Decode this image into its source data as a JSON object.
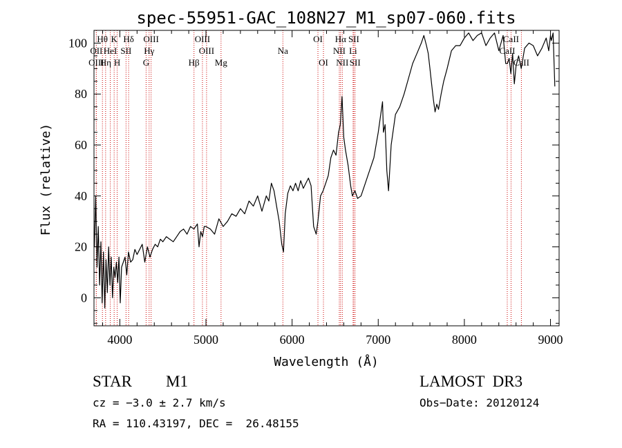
{
  "chart_data": {
    "type": "line",
    "title": "spec-55951-GAC_108N27_M1_sp07-060.fits",
    "xlabel": "Wavelength (Å)",
    "ylabel": "Flux (relative)",
    "xlim": [
      3700,
      9100
    ],
    "ylim": [
      -11,
      105
    ],
    "x_ticks": [
      4000,
      5000,
      6000,
      7000,
      8000,
      9000
    ],
    "y_ticks": [
      0,
      20,
      40,
      60,
      80,
      100
    ],
    "spectral_lines": [
      {
        "label": "Hθ",
        "wavelength": 3798,
        "row": 0
      },
      {
        "label": "K",
        "wavelength": 3934,
        "row": 0
      },
      {
        "label": "Hδ",
        "wavelength": 4102,
        "row": 0
      },
      {
        "label": "OIII",
        "wavelength": 4363,
        "row": 0
      },
      {
        "label": "OIII",
        "wavelength": 4959,
        "row": 0
      },
      {
        "label": "OI",
        "wavelength": 6300,
        "row": 0
      },
      {
        "label": "Hα",
        "wavelength": 6563,
        "row": 0
      },
      {
        "label": "SII",
        "wavelength": 6716,
        "row": 0
      },
      {
        "label": "CaII",
        "wavelength": 8542,
        "row": 0
      },
      {
        "label": "OII",
        "wavelength": 3727,
        "row": 1
      },
      {
        "label": "HeI",
        "wavelength": 3889,
        "row": 1
      },
      {
        "label": "SII",
        "wavelength": 4072,
        "row": 1
      },
      {
        "label": "Hγ",
        "wavelength": 4340,
        "row": 1
      },
      {
        "label": "OIII",
        "wavelength": 5007,
        "row": 1
      },
      {
        "label": "Na",
        "wavelength": 5893,
        "row": 1
      },
      {
        "label": "NII",
        "wavelength": 6548,
        "row": 1
      },
      {
        "label": "Li",
        "wavelength": 6708,
        "row": 1
      },
      {
        "label": "CaII",
        "wavelength": 8498,
        "row": 1
      },
      {
        "label": "OIII",
        "wavelength": 3727,
        "row": 2
      },
      {
        "label": "Hη",
        "wavelength": 3835,
        "row": 2
      },
      {
        "label": "H",
        "wavelength": 3969,
        "row": 2
      },
      {
        "label": "G",
        "wavelength": 4305,
        "row": 2
      },
      {
        "label": "Hβ",
        "wavelength": 4861,
        "row": 2
      },
      {
        "label": "Mg",
        "wavelength": 5175,
        "row": 2
      },
      {
        "label": "OI",
        "wavelength": 6364,
        "row": 2
      },
      {
        "label": "NII",
        "wavelength": 6583,
        "row": 2
      },
      {
        "label": "SII",
        "wavelength": 6731,
        "row": 2
      },
      {
        "label": "CaII",
        "wavelength": 8662,
        "row": 2
      }
    ],
    "line_label_color": "#000000",
    "line_marker_color": "#cc0000",
    "series": [
      {
        "name": "flux",
        "color": "#000000",
        "x": [
          3705,
          3720,
          3735,
          3750,
          3765,
          3780,
          3795,
          3810,
          3825,
          3840,
          3855,
          3870,
          3885,
          3900,
          3915,
          3930,
          3945,
          3960,
          3975,
          3990,
          4005,
          4020,
          4040,
          4060,
          4080,
          4100,
          4125,
          4150,
          4175,
          4200,
          4230,
          4260,
          4290,
          4320,
          4350,
          4380,
          4410,
          4440,
          4470,
          4500,
          4540,
          4580,
          4620,
          4660,
          4700,
          4740,
          4780,
          4820,
          4860,
          4880,
          4900,
          4920,
          4940,
          4960,
          4980,
          5000,
          5050,
          5100,
          5150,
          5200,
          5250,
          5300,
          5350,
          5400,
          5450,
          5500,
          5550,
          5600,
          5650,
          5700,
          5730,
          5760,
          5790,
          5820,
          5850,
          5880,
          5900,
          5920,
          5950,
          5980,
          6010,
          6040,
          6070,
          6100,
          6130,
          6160,
          6190,
          6220,
          6250,
          6280,
          6300,
          6330,
          6360,
          6390,
          6420,
          6450,
          6480,
          6510,
          6540,
          6560,
          6580,
          6600,
          6620,
          6650,
          6680,
          6700,
          6730,
          6760,
          6800,
          6850,
          6900,
          6950,
          7000,
          7050,
          7060,
          7080,
          7100,
          7120,
          7150,
          7200,
          7250,
          7300,
          7350,
          7400,
          7450,
          7500,
          7530,
          7560,
          7580,
          7600,
          7620,
          7640,
          7660,
          7680,
          7700,
          7730,
          7760,
          7800,
          7850,
          7900,
          7950,
          8000,
          8050,
          8100,
          8150,
          8200,
          8250,
          8300,
          8350,
          8400,
          8450,
          8480,
          8500,
          8520,
          8540,
          8560,
          8580,
          8600,
          8630,
          8660,
          8700,
          8750,
          8800,
          8850,
          8900,
          8950,
          8980,
          9000,
          9010,
          9030,
          9050
        ],
        "y": [
          20,
          40,
          12,
          28,
          5,
          22,
          -2,
          18,
          -4,
          15,
          2,
          20,
          5,
          16,
          0,
          12,
          8,
          14,
          6,
          16,
          -2,
          12,
          14,
          16,
          9,
          18,
          14,
          15,
          19,
          17,
          19,
          21,
          14,
          20,
          16,
          19,
          21,
          20,
          23,
          22,
          24,
          23,
          22,
          24,
          26,
          27,
          25,
          28,
          27,
          28,
          29,
          20,
          26,
          24,
          28,
          28,
          27,
          25,
          31,
          28,
          30,
          33,
          32,
          35,
          33,
          38,
          36,
          40,
          34,
          40,
          38,
          45,
          42,
          36,
          30,
          21,
          18,
          33,
          41,
          44,
          42,
          45,
          42,
          46,
          43,
          45,
          47,
          44,
          28,
          25,
          30,
          40,
          42,
          45,
          48,
          55,
          58,
          56,
          65,
          68,
          79,
          63,
          58,
          52,
          44,
          40,
          42,
          39,
          40,
          45,
          50,
          55,
          65,
          77,
          65,
          68,
          50,
          42,
          60,
          72,
          75,
          80,
          86,
          92,
          96,
          100,
          103,
          99,
          96,
          90,
          84,
          78,
          73,
          76,
          74,
          80,
          85,
          90,
          97,
          99,
          99,
          102,
          104,
          101,
          103,
          104,
          99,
          102,
          104,
          97,
          103,
          92,
          92,
          94,
          88,
          96,
          84,
          91,
          95,
          90,
          98,
          100,
          99,
          95,
          98,
          102,
          97,
          103,
          101,
          104,
          83
        ]
      }
    ]
  },
  "info": {
    "object_type": "STAR",
    "subclass": "M1",
    "survey": "LAMOST  DR3",
    "cz": "cz = −3.0 ± 2.7 km/s",
    "obs_date": "Obs−Date: 20120124",
    "coords": "RA = 110.43197, DEC =  26.48155"
  }
}
